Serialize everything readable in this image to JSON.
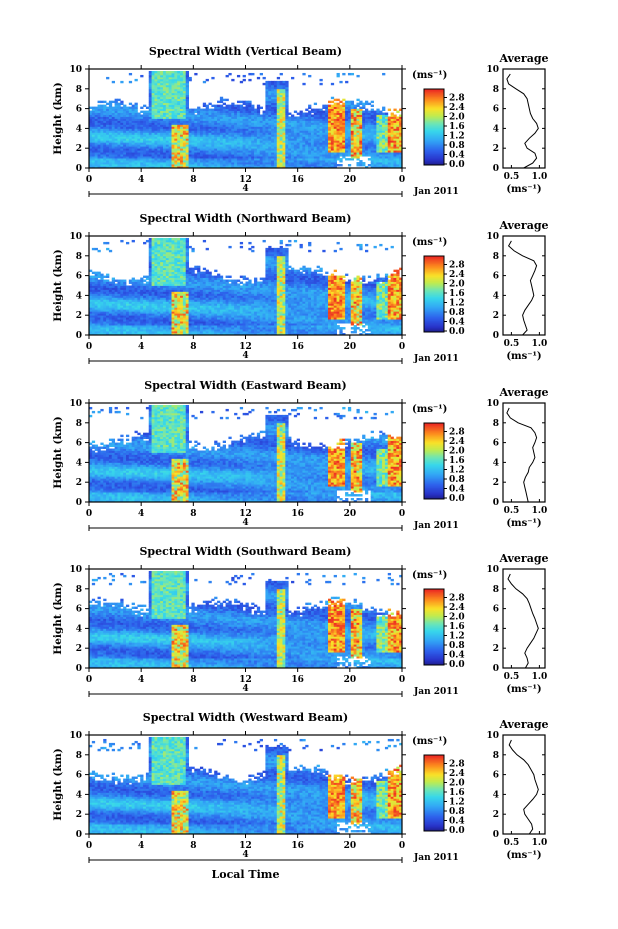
{
  "figure": {
    "x_label": "Local Time",
    "date_label": "Jan 2011",
    "day_label": "4"
  },
  "chart_data": [
    {
      "type": "heatmap",
      "title": "Spectral Width (Vertical Beam)",
      "xlabel": "",
      "ylabel": "Height (km)",
      "xticks": [
        "0",
        "4",
        "8",
        "12",
        "16",
        "20",
        "0"
      ],
      "xlim": [
        0,
        24
      ],
      "yticks": [
        "0",
        "2",
        "4",
        "6",
        "8",
        "10"
      ],
      "ylim": [
        0,
        10
      ],
      "colorbar": {
        "unit": "(ms⁻¹)",
        "ticks": [
          "0.0",
          "0.4",
          "0.8",
          "1.2",
          "1.6",
          "2.0",
          "2.4",
          "2.8"
        ]
      },
      "average": {
        "title": "Average",
        "xlabel": "(ms⁻¹)",
        "xticks": [
          "0.5",
          "1.0"
        ],
        "xlim": [
          0.35,
          1.1
        ],
        "heights": [
          0,
          0.5,
          1,
          1.5,
          2,
          2.5,
          3,
          3.5,
          4,
          4.5,
          5,
          5.5,
          6,
          6.5,
          7,
          7.5,
          8,
          8.5,
          9,
          9.5
        ],
        "values": [
          0.72,
          0.88,
          0.95,
          0.92,
          0.78,
          0.74,
          0.82,
          0.92,
          0.98,
          0.95,
          0.88,
          0.84,
          0.82,
          0.8,
          0.78,
          0.72,
          0.58,
          0.45,
          0.42,
          0.48
        ]
      }
    },
    {
      "type": "heatmap",
      "title": "Spectral Width (Northward Beam)",
      "xlabel": "",
      "ylabel": "Height (km)",
      "xticks": [
        "0",
        "4",
        "8",
        "12",
        "16",
        "20",
        "0"
      ],
      "xlim": [
        0,
        24
      ],
      "yticks": [
        "0",
        "2",
        "4",
        "6",
        "8",
        "10"
      ],
      "ylim": [
        0,
        10
      ],
      "colorbar": {
        "unit": "(ms⁻¹)",
        "ticks": [
          "0.0",
          "0.4",
          "0.8",
          "1.2",
          "1.6",
          "2.0",
          "2.4",
          "2.8"
        ]
      },
      "average": {
        "title": "Average",
        "xlabel": "(ms⁻¹)",
        "xticks": [
          "0.5",
          "1.0"
        ],
        "xlim": [
          0.35,
          1.1
        ],
        "heights": [
          0,
          0.5,
          1,
          1.5,
          2,
          2.5,
          3,
          3.5,
          4,
          4.5,
          5,
          5.5,
          6,
          6.5,
          7,
          7.5,
          8,
          8.5,
          9,
          9.5
        ],
        "values": [
          0.7,
          0.78,
          0.75,
          0.72,
          0.7,
          0.74,
          0.8,
          0.86,
          0.9,
          0.88,
          0.86,
          0.84,
          0.88,
          0.92,
          0.95,
          0.9,
          0.7,
          0.55,
          0.45,
          0.5
        ]
      }
    },
    {
      "type": "heatmap",
      "title": "Spectral Width (Eastward Beam)",
      "xlabel": "",
      "ylabel": "Height (km)",
      "xticks": [
        "0",
        "4",
        "8",
        "12",
        "16",
        "20",
        "0"
      ],
      "xlim": [
        0,
        24
      ],
      "yticks": [
        "0",
        "2",
        "4",
        "6",
        "8",
        "10"
      ],
      "ylim": [
        0,
        10
      ],
      "colorbar": {
        "unit": "(ms⁻¹)",
        "ticks": [
          "0.0",
          "0.4",
          "0.8",
          "1.2",
          "1.6",
          "2.0",
          "2.4",
          "2.8"
        ]
      },
      "average": {
        "title": "Average",
        "xlabel": "(ms⁻¹)",
        "xticks": [
          "0.5",
          "1.0"
        ],
        "xlim": [
          0.35,
          1.1
        ],
        "heights": [
          0,
          0.5,
          1,
          1.5,
          2,
          2.5,
          3,
          3.5,
          4,
          4.5,
          5,
          5.5,
          6,
          6.5,
          7,
          7.5,
          8,
          8.5,
          9,
          9.5
        ],
        "values": [
          0.8,
          0.78,
          0.76,
          0.74,
          0.72,
          0.75,
          0.8,
          0.82,
          0.88,
          0.92,
          0.9,
          0.88,
          0.92,
          0.95,
          0.92,
          0.85,
          0.62,
          0.48,
          0.42,
          0.46
        ]
      }
    },
    {
      "type": "heatmap",
      "title": "Spectral Width (Southward Beam)",
      "xlabel": "",
      "ylabel": "Height (km)",
      "xticks": [
        "0",
        "4",
        "8",
        "12",
        "16",
        "20",
        "0"
      ],
      "xlim": [
        0,
        24
      ],
      "yticks": [
        "0",
        "2",
        "4",
        "6",
        "8",
        "10"
      ],
      "ylim": [
        0,
        10
      ],
      "colorbar": {
        "unit": "(ms⁻¹)",
        "ticks": [
          "0.0",
          "0.4",
          "0.8",
          "1.2",
          "1.6",
          "2.0",
          "2.4",
          "2.8"
        ]
      },
      "average": {
        "title": "Average",
        "xlabel": "(ms⁻¹)",
        "xticks": [
          "0.5",
          "1.0"
        ],
        "xlim": [
          0.35,
          1.1
        ],
        "heights": [
          0,
          0.5,
          1,
          1.5,
          2,
          2.5,
          3,
          3.5,
          4,
          4.5,
          5,
          5.5,
          6,
          6.5,
          7,
          7.5,
          8,
          8.5,
          9,
          9.5
        ],
        "values": [
          0.75,
          0.8,
          0.78,
          0.74,
          0.78,
          0.84,
          0.9,
          0.94,
          0.98,
          0.95,
          0.92,
          0.88,
          0.85,
          0.82,
          0.78,
          0.7,
          0.58,
          0.5,
          0.44,
          0.48
        ]
      }
    },
    {
      "type": "heatmap",
      "title": "Spectral Width (Westward Beam)",
      "xlabel": "Local Time",
      "ylabel": "Height (km)",
      "xticks": [
        "0",
        "4",
        "8",
        "12",
        "16",
        "20",
        "0"
      ],
      "xlim": [
        0,
        24
      ],
      "yticks": [
        "0",
        "2",
        "4",
        "6",
        "8",
        "10"
      ],
      "ylim": [
        0,
        10
      ],
      "colorbar": {
        "unit": "(ms⁻¹)",
        "ticks": [
          "0.0",
          "0.4",
          "0.8",
          "1.2",
          "1.6",
          "2.0",
          "2.4",
          "2.8"
        ]
      },
      "average": {
        "title": "Average",
        "xlabel": "(ms⁻¹)",
        "xticks": [
          "0.5",
          "1.0"
        ],
        "xlim": [
          0.35,
          1.1
        ],
        "heights": [
          0,
          0.5,
          1,
          1.5,
          2,
          2.5,
          3,
          3.5,
          4,
          4.5,
          5,
          5.5,
          6,
          6.5,
          7,
          7.5,
          8,
          8.5,
          9,
          9.5
        ],
        "values": [
          0.82,
          0.88,
          0.86,
          0.8,
          0.74,
          0.72,
          0.8,
          0.88,
          0.95,
          0.98,
          0.95,
          0.92,
          0.9,
          0.85,
          0.8,
          0.72,
          0.6,
          0.52,
          0.46,
          0.5
        ]
      }
    }
  ]
}
